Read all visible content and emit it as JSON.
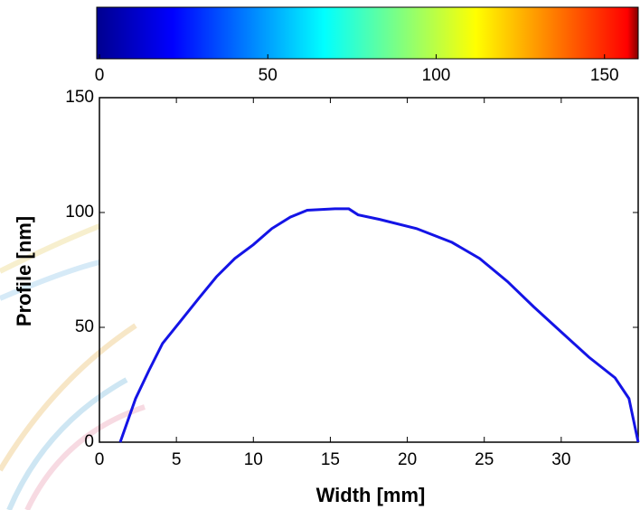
{
  "chart_data": {
    "type": "line",
    "xlabel": "Width [mm]",
    "ylabel": "Profile [nm]",
    "x": [
      1.35,
      2.35,
      3.2,
      4.1,
      5.3,
      6.5,
      7.6,
      8.8,
      10,
      11.2,
      12.4,
      13.5,
      15.3,
      16.2,
      16.8,
      18.2,
      20.6,
      22.9,
      24.7,
      26.5,
      28.2,
      30,
      31.8,
      33.5,
      34.4,
      35
    ],
    "series": [
      {
        "color": "#1414e6",
        "values": [
          0,
          19,
          31,
          43,
          53,
          63,
          72,
          80,
          86,
          93,
          98,
          101,
          101.6,
          101.6,
          99,
          97,
          93,
          87,
          80,
          70,
          59,
          48,
          37,
          28,
          19,
          0
        ]
      }
    ],
    "xlim": [
      0,
      35
    ],
    "xticks": [
      0,
      5,
      10,
      15,
      20,
      25,
      30
    ],
    "ylim": [
      0,
      150
    ],
    "yticks": [
      0,
      50,
      100,
      150
    ],
    "colorbar": {
      "colormap": "jet",
      "lim": [
        0,
        160
      ],
      "ticks": [
        0,
        50,
        100,
        150
      ]
    }
  }
}
